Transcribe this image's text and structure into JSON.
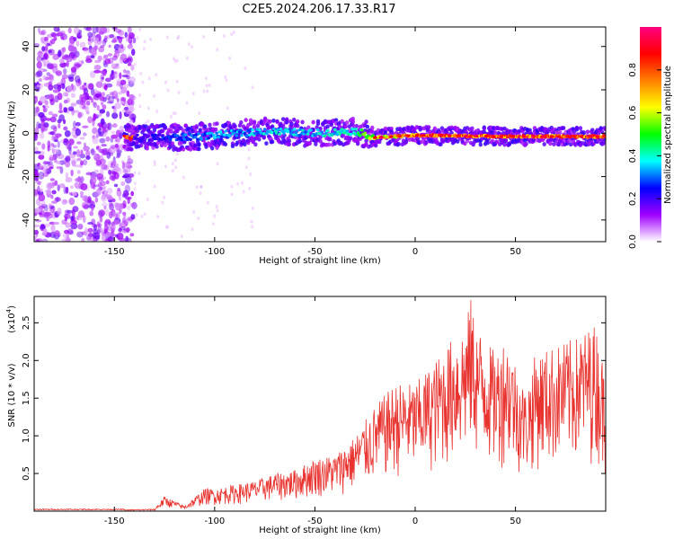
{
  "figure_title": "C2E5.2024.206.17.33.R17",
  "chart_data": [
    {
      "type": "heatmap",
      "xlabel": "Height of straight line (km)",
      "ylabel": "Frequency (Hz)",
      "xlim": [
        -190,
        95
      ],
      "ylim": [
        -50,
        49
      ],
      "xticks": [
        -150,
        -100,
        -50,
        0,
        50
      ],
      "yticks": [
        -40,
        -20,
        0,
        20,
        40
      ],
      "colorbar": {
        "label": "Normalized spectral amplitude",
        "range": [
          0,
          1
        ],
        "ticks": [
          "0.0",
          "0.2",
          "0.4",
          "0.6",
          "0.8"
        ],
        "colors": [
          "#ffffff",
          "#a000ff",
          "#0000ff",
          "#00ffff",
          "#00ff00",
          "#ffff00",
          "#ff8000",
          "#ff0000",
          "#ff0080"
        ]
      },
      "noise_region_x": [
        -190,
        -140
      ],
      "ridge": [
        {
          "x": -140,
          "y": -2,
          "amplitude": 0.2
        },
        {
          "x": -120,
          "y": -2,
          "amplitude": 0.3
        },
        {
          "x": -100,
          "y": -1,
          "amplitude": 0.35
        },
        {
          "x": -75,
          "y": 1,
          "amplitude": 0.4
        },
        {
          "x": -50,
          "y": 0,
          "amplitude": 0.4
        },
        {
          "x": -30,
          "y": 1,
          "amplitude": 0.45
        },
        {
          "x": -20,
          "y": -2,
          "amplitude": 0.7
        },
        {
          "x": 0,
          "y": -1,
          "amplitude": 0.85
        },
        {
          "x": 50,
          "y": -1.5,
          "amplitude": 0.9
        },
        {
          "x": 95,
          "y": -1.5,
          "amplitude": 0.9
        }
      ]
    },
    {
      "type": "line",
      "xlabel": "Height of straight line (km)",
      "ylabel": "SNR (10 * v/v)",
      "yscale_label": "(x10",
      "yscale_exp": "4",
      "yscale_close": ")",
      "xlim": [
        -190,
        95
      ],
      "ylim": [
        0,
        2.85
      ],
      "xticks": [
        -150,
        -100,
        -50,
        0,
        50
      ],
      "yticks": [
        "0.5",
        "1.0",
        "1.5",
        "2.0",
        "2.5"
      ],
      "color": "#e8332f",
      "envelope_x": [
        -190,
        -145,
        -130,
        -125,
        -115,
        -105,
        -100,
        -90,
        -80,
        -70,
        -60,
        -50,
        -40,
        -30,
        -20,
        -10,
        0,
        10,
        20,
        25,
        28,
        30,
        40,
        45,
        50,
        55,
        60,
        70,
        80,
        85,
        90,
        95
      ],
      "envelope_y": [
        0.02,
        0.02,
        0.03,
        0.2,
        0.07,
        0.3,
        0.3,
        0.35,
        0.4,
        0.5,
        0.55,
        0.7,
        0.75,
        1.0,
        1.4,
        1.7,
        1.7,
        2.0,
        2.35,
        2.5,
        2.85,
        2.5,
        2.1,
        2.35,
        2.0,
        1.6,
        2.1,
        2.2,
        2.3,
        2.4,
        2.5,
        1.8
      ]
    }
  ]
}
